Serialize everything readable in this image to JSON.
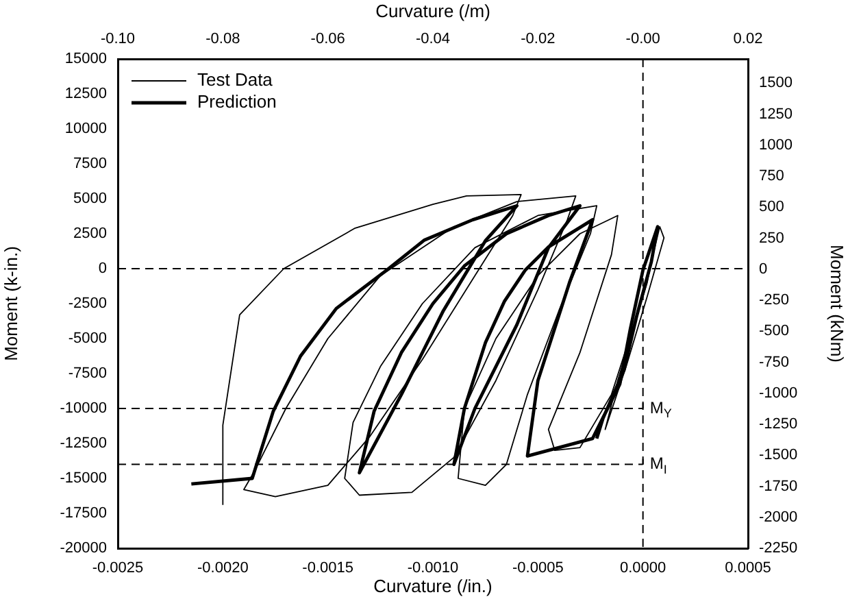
{
  "chart_data": {
    "type": "line",
    "xlabel": "Curvature (/in.)",
    "x2label": "Curvature (/m)",
    "ylabel": "Moment (k-in.)",
    "y2label": "Moment (kNm)",
    "xlim": [
      -0.0025,
      0.0005
    ],
    "xticks": [
      {
        "value": -0.0025,
        "label": "-0.0025"
      },
      {
        "value": -0.002,
        "label": "-0.0020"
      },
      {
        "value": -0.0015,
        "label": "-0.0015"
      },
      {
        "value": -0.001,
        "label": "-0.0010"
      },
      {
        "value": -0.0005,
        "label": "-0.0005"
      },
      {
        "value": 0,
        "label": "0.0000"
      },
      {
        "value": 0.0005,
        "label": "0.0005"
      }
    ],
    "x2lim": [
      -0.1,
      0.02
    ],
    "x2ticks": [
      {
        "value": -0.1,
        "label": "-0.10"
      },
      {
        "value": -0.08,
        "label": "-0.08"
      },
      {
        "value": -0.06,
        "label": "-0.06"
      },
      {
        "value": -0.04,
        "label": "-0.04"
      },
      {
        "value": -0.02,
        "label": "-0.02"
      },
      {
        "value": 0,
        "label": "-0.00"
      },
      {
        "value": 0.02,
        "label": "0.02"
      }
    ],
    "ylim": [
      -20000,
      15000
    ],
    "yticks": [
      -20000,
      -17500,
      -15000,
      -12500,
      -10000,
      -7500,
      -5000,
      -2500,
      0,
      2500,
      5000,
      7500,
      10000,
      12500,
      15000
    ],
    "y2lim": [
      -2250,
      1695
    ],
    "y2ticks": [
      -2250,
      -2000,
      -1750,
      -1500,
      -1250,
      -1000,
      -750,
      -500,
      -250,
      0,
      250,
      500,
      750,
      1000,
      1250,
      1500
    ],
    "grid": false,
    "legend": "top left",
    "marker": "none",
    "line_style": "solid",
    "ref_lines": [
      {
        "axis": "x",
        "value": 0,
        "label": null,
        "line_style": "dashed"
      },
      {
        "axis": "y",
        "value": 0,
        "label": null,
        "line_style": "dashed"
      },
      {
        "axis": "y",
        "value": -10000,
        "label": "M$_{Y}$",
        "line_style": "dashed"
      },
      {
        "axis": "y",
        "value": -14000,
        "label": "M$_{I}$",
        "line_style": "dashed"
      }
    ],
    "series": [
      {
        "name": "Test Data",
        "color": "#000000",
        "x": [
          -0.002,
          -0.002,
          -0.00192,
          -0.00171,
          -0.00137,
          -0.001,
          -0.00084,
          -0.00058,
          -0.00062,
          -0.0008,
          -0.00105,
          -0.0013,
          -0.0015,
          -0.00175,
          -0.0019,
          -0.00185,
          -0.0017,
          -0.0015,
          -0.00125,
          -0.0009,
          -0.0006,
          -0.00032,
          -0.00036,
          -0.0005,
          -0.0007,
          -0.0009,
          -0.0011,
          -0.00135,
          -0.00142,
          -0.00138,
          -0.00125,
          -0.00105,
          -0.0008,
          -0.0005,
          -0.00022,
          -0.00025,
          -0.0004,
          -0.00055,
          -0.00065,
          -0.00075,
          -0.00088,
          -0.00085,
          -0.0007,
          -0.0005,
          -0.0003,
          -0.00012,
          -0.00015,
          -0.0003,
          -0.00045,
          -0.00042,
          -0.0003,
          -0.00015,
          0,
          8e-05,
          0.0001,
          2e-05,
          -8e-05,
          -0.00018,
          -0.00012,
          2e-05,
          7e-05
        ],
        "values": [
          -16900,
          -11200,
          -3300,
          0,
          2900,
          4600,
          5200,
          5300,
          3800,
          -500,
          -6500,
          -12000,
          -15500,
          -16300,
          -15800,
          -14500,
          -10000,
          -5000,
          -500,
          3000,
          4800,
          5200,
          3500,
          -1500,
          -8000,
          -13500,
          -16000,
          -16200,
          -15000,
          -11000,
          -7000,
          -2500,
          1500,
          3800,
          4500,
          2500,
          -3000,
          -9000,
          -14000,
          -15500,
          -15000,
          -10000,
          -5000,
          -500,
          2500,
          3800,
          1000,
          -6000,
          -11500,
          -13000,
          -12800,
          -9000,
          -2000,
          3000,
          2200,
          -2000,
          -7000,
          -11500,
          -8000,
          -1000,
          2800
        ]
      },
      {
        "name": "Prediction",
        "color": "#000000",
        "x": [
          -0.00215,
          -0.00186,
          -0.00176,
          -0.00163,
          -0.00146,
          -0.00122,
          -0.00104,
          -0.00081,
          -0.0006,
          -0.00075,
          -0.00095,
          -0.00115,
          -0.00135,
          -0.00128,
          -0.00115,
          -0.001,
          -0.00085,
          -0.00065,
          -0.00045,
          -0.0003,
          -0.00045,
          -0.0006,
          -0.0008,
          -0.0009,
          -0.00085,
          -0.00075,
          -0.00066,
          -0.00056,
          -0.00045,
          -0.00024,
          -0.00035,
          -0.0005,
          -0.00055,
          -0.00024,
          -0.00011,
          -6e-05,
          0,
          7e-05,
          4e-05,
          -3e-05,
          -9e-05,
          -0.00019,
          -0.00022
        ],
        "values": [
          -15400,
          -15000,
          -10200,
          -6250,
          -2850,
          -100,
          2050,
          3500,
          4500,
          2000,
          -3000,
          -9000,
          -14600,
          -10200,
          -6000,
          -2500,
          200,
          2500,
          3800,
          4500,
          1500,
          -4000,
          -10000,
          -14000,
          -10000,
          -5300,
          -2350,
          -100,
          1550,
          3500,
          -1000,
          -8000,
          -13400,
          -12150,
          -8250,
          -4300,
          -100,
          3000,
          500,
          -3400,
          -7250,
          -10700,
          -12150
        ]
      }
    ]
  }
}
